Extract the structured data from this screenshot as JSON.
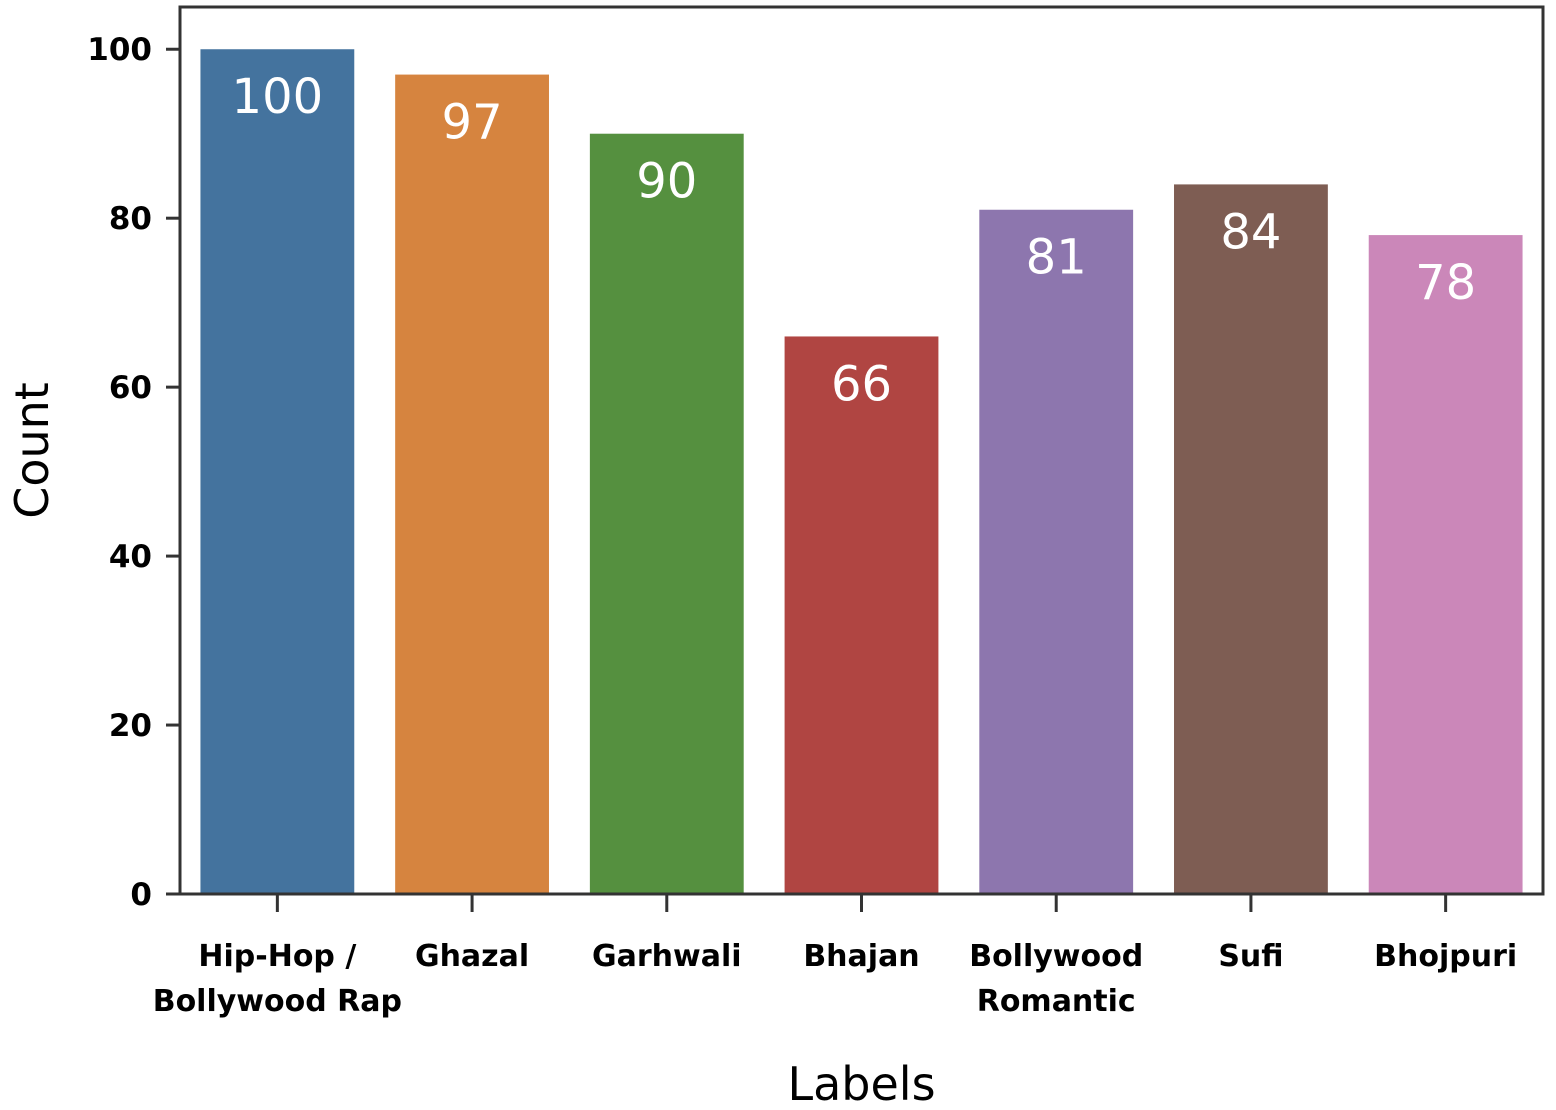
{
  "chart_data": {
    "type": "bar",
    "categories": [
      [
        "Hip-Hop /",
        "Bollywood Rap"
      ],
      [
        "Ghazal"
      ],
      [
        "Garhwali"
      ],
      [
        "Bhajan"
      ],
      [
        "Bollywood",
        "Romantic"
      ],
      [
        "Sufi"
      ],
      [
        "Bhojpuri"
      ]
    ],
    "values": [
      100,
      97,
      90,
      66,
      81,
      84,
      78
    ],
    "data_labels": [
      "100",
      "97",
      "90",
      "66",
      "81",
      "84",
      "78"
    ],
    "colors": [
      "#44739e",
      "#d6843f",
      "#55903f",
      "#b04542",
      "#8d76ae",
      "#7e5d53",
      "#cb87b9"
    ],
    "title": "",
    "xlabel": "Labels",
    "ylabel": "Count",
    "ylim": [
      0,
      105
    ],
    "yticks": [
      0,
      20,
      40,
      60,
      80,
      100
    ],
    "ytick_labels": [
      "0",
      "20",
      "40",
      "60",
      "80",
      "100"
    ],
    "grid": false,
    "legend": "none"
  }
}
